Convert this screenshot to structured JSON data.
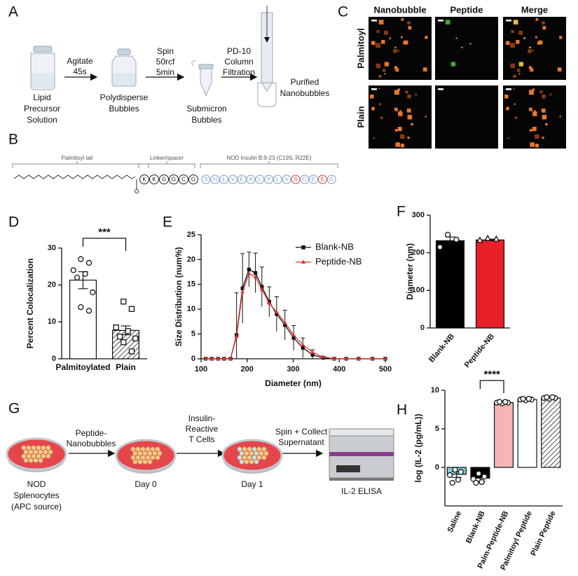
{
  "panel_a": {
    "label": "A",
    "steps": [
      [
        "Lipid",
        "Precursor",
        "Solution"
      ],
      [
        "Polydisperse",
        "Bubbles"
      ],
      [
        "Submicron",
        "Bubbles"
      ],
      [
        "Purified",
        "Nanobubbles"
      ]
    ],
    "arrows": [
      [
        "Agitate",
        "45s"
      ],
      [
        "Spin",
        "50rcf",
        "5min"
      ],
      [
        "PD-10",
        "Column",
        "Filtration"
      ]
    ]
  },
  "panel_b": {
    "label": "B",
    "regions": [
      "Palmitoyl tail",
      "Linker/spacer",
      "NOD Insulin B:9-23 (C19S, R22E)"
    ],
    "linker": [
      "K",
      "K",
      "G",
      "G",
      "C",
      "G"
    ],
    "insulin": [
      {
        "letter": "S",
        "color": "#7d9cc9"
      },
      {
        "letter": "H",
        "color": "#7d9cc9"
      },
      {
        "letter": "L",
        "color": "#7d9cc9"
      },
      {
        "letter": "V",
        "color": "#7d9cc9"
      },
      {
        "letter": "E",
        "color": "#7d9cc9"
      },
      {
        "letter": "A",
        "color": "#7d9cc9"
      },
      {
        "letter": "L",
        "color": "#7d9cc9"
      },
      {
        "letter": "Y",
        "color": "#7d9cc9"
      },
      {
        "letter": "L",
        "color": "#7d9cc9"
      },
      {
        "letter": "V",
        "color": "#7d9cc9"
      },
      {
        "letter": "S",
        "color": "#d0443e"
      },
      {
        "letter": "G",
        "color": "#7d9cc9"
      },
      {
        "letter": "E",
        "color": "#7d9cc9"
      },
      {
        "letter": "E",
        "color": "#d0443e"
      },
      {
        "letter": "G",
        "color": "#7d9cc9"
      }
    ]
  },
  "panel_c": {
    "label": "C",
    "columns": [
      "Nanobubble",
      "Peptide",
      "Merge"
    ],
    "rows": [
      "Palmitoyl",
      "Plain"
    ]
  },
  "panel_g": {
    "label": "G",
    "steps": [
      [
        "NOD",
        "Splenocytes",
        "(APC source)"
      ],
      [
        "Day 0"
      ],
      [
        "Day 1"
      ],
      [
        "IL-2 ELISA"
      ]
    ],
    "arrows": [
      [
        "Peptide-",
        "Nanobubbles"
      ],
      [
        "Insulin-",
        "Reactive",
        "T Cells"
      ],
      [
        "Spin + Collect",
        "Supernatant"
      ]
    ]
  },
  "chart_data": [
    {
      "type": "bar",
      "label": "D",
      "y_label": "Percent Colocalization",
      "categories": [
        "Palmitoylated",
        "Plain"
      ],
      "values": [
        21.3,
        7.7
      ],
      "errors": [
        2.3,
        1.2
      ],
      "points": [
        [
          27,
          26,
          24,
          23,
          22,
          18,
          14,
          13
        ],
        [
          15.5,
          13.5,
          8.5,
          7.5,
          6,
          5.5,
          4.5,
          2
        ]
      ],
      "markers": [
        "circle",
        "square"
      ],
      "colors": [
        "#ffffff",
        "#ffffff"
      ],
      "hatched": [
        false,
        true
      ],
      "ylim": [
        0,
        30
      ],
      "yticks": [
        0,
        10,
        20,
        30
      ],
      "annotation": {
        "text": "***",
        "between": [
          0,
          1
        ]
      }
    },
    {
      "type": "line",
      "label": "E",
      "x_label": "Diameter (nm)",
      "y_label": "Size  Distribution (num%)",
      "x": [
        110,
        123,
        137,
        150,
        164,
        177,
        190,
        204,
        218,
        232,
        248,
        264,
        282,
        301,
        321,
        342,
        365,
        389,
        415,
        442,
        472,
        500
      ],
      "series": [
        {
          "name": "Blank-NB",
          "color": "#111111",
          "marker": "square",
          "values": [
            0,
            0,
            0,
            0,
            0,
            4.8,
            14.2,
            18,
            17.3,
            14.5,
            11.5,
            9,
            6.8,
            4.2,
            2.2,
            0.8,
            0.2,
            0,
            0,
            0,
            0,
            0
          ],
          "errors": [
            null,
            null,
            null,
            null,
            null,
            8.5,
            7,
            3.5,
            4,
            4,
            3,
            3.5,
            3,
            2.5,
            2,
            1,
            null,
            null,
            null,
            null,
            null,
            null
          ]
        },
        {
          "name": "Peptide-NB",
          "color": "#e03030",
          "marker": "triangle",
          "values": [
            0,
            0,
            0,
            0,
            0,
            4.5,
            13.5,
            17.2,
            16.5,
            14,
            11.2,
            9.4,
            7.3,
            4.8,
            2.8,
            1.3,
            0.4,
            0,
            0,
            0,
            0,
            0
          ]
        }
      ],
      "xlim": [
        100,
        500
      ],
      "xticks": [
        100,
        200,
        300,
        400,
        500
      ],
      "ylim": [
        0,
        25
      ],
      "yticks": [
        0,
        5,
        10,
        15,
        20,
        25
      ]
    },
    {
      "type": "bar",
      "label": "F",
      "y_label": "Diameter (nm)",
      "categories": [
        "Blank-NB",
        "Peptide-NB"
      ],
      "values": [
        232,
        234
      ],
      "errors": [
        10,
        2
      ],
      "points": [
        [
          248,
          235,
          215
        ],
        [
          238,
          236,
          233
        ]
      ],
      "markers": [
        "circle",
        "triangle"
      ],
      "colors": [
        "#000000",
        "#e8202a"
      ],
      "hatched": [
        false,
        false
      ],
      "ylim": [
        0,
        300
      ],
      "yticks": [
        0,
        100,
        200,
        300
      ]
    },
    {
      "type": "bar",
      "label": "H",
      "y_label": "log (IL-2 (pg/mL))",
      "categories": [
        "Saline",
        "Blank-NB",
        "Palm-Peptide-NB",
        "Palmitoyl Peptide",
        "Plain Peptide"
      ],
      "values": [
        -0.9,
        -1.4,
        8.4,
        8.8,
        9.0
      ],
      "errors": [
        0.4,
        0.4,
        0.1,
        0.1,
        0.1
      ],
      "points": [
        [
          -0.3,
          -0.6,
          -1.0,
          -1.6,
          -2.0
        ],
        [
          -0.8,
          -1.2,
          -1.5,
          -1.9,
          -2.0
        ],
        [
          8.3,
          8.4,
          8.4,
          8.5,
          8.5
        ],
        [
          8.7,
          8.8,
          8.8,
          8.9,
          8.9
        ],
        [
          8.9,
          9.0,
          9.0,
          9.1,
          9.1
        ]
      ],
      "markers": [
        "circle",
        "circle",
        "circle",
        "circle",
        "circle"
      ],
      "colors": [
        "#7fc9dc",
        "#000000",
        "#f5b5b5",
        "#ffffff",
        "#ffffff"
      ],
      "hatched": [
        false,
        false,
        false,
        false,
        true
      ],
      "ylim": [
        -5,
        10
      ],
      "yticks": [
        0,
        5,
        10
      ],
      "annotation": {
        "text": "****",
        "between": [
          1,
          2
        ]
      }
    }
  ]
}
